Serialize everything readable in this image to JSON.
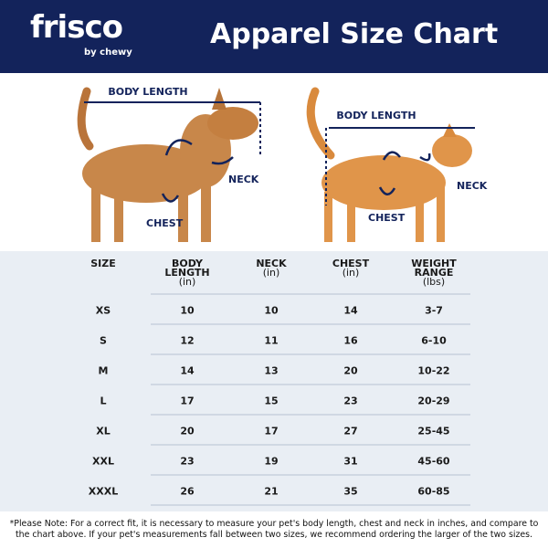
{
  "header": {
    "logo": "frisco",
    "logo_sub": "by chewy",
    "title": "Apparel Size Chart"
  },
  "images": {
    "dog": {
      "body_length": "BODY LENGTH",
      "neck": "NECK",
      "chest": "CHEST"
    },
    "cat": {
      "body_length": "BODY LENGTH",
      "neck": "NECK",
      "chest": "CHEST"
    }
  },
  "table": {
    "columns": [
      {
        "lines": [
          "SIZE"
        ]
      },
      {
        "lines": [
          "BODY",
          "LENGTH"
        ],
        "unit": "(in)"
      },
      {
        "lines": [
          "NECK"
        ],
        "unit": "(in)"
      },
      {
        "lines": [
          "CHEST"
        ],
        "unit": "(in)"
      },
      {
        "lines": [
          "WEIGHT",
          "RANGE"
        ],
        "unit": "(lbs)"
      }
    ],
    "rows": [
      [
        "XS",
        "10",
        "10",
        "14",
        "3-7"
      ],
      [
        "S",
        "12",
        "11",
        "16",
        "6-10"
      ],
      [
        "M",
        "14",
        "13",
        "20",
        "10-22"
      ],
      [
        "L",
        "17",
        "15",
        "23",
        "20-29"
      ],
      [
        "XL",
        "20",
        "17",
        "27",
        "25-45"
      ],
      [
        "XXL",
        "23",
        "19",
        "31",
        "45-60"
      ],
      [
        "XXXL",
        "26",
        "21",
        "35",
        "60-85"
      ]
    ]
  },
  "note": "*Please Note: For a correct fit, it is necessary to measure your pet's body length, chest and neck in inches, and compare to the chart above. If your pet's measurements fall between two sizes, we recommend ordering the larger of the two sizes."
}
